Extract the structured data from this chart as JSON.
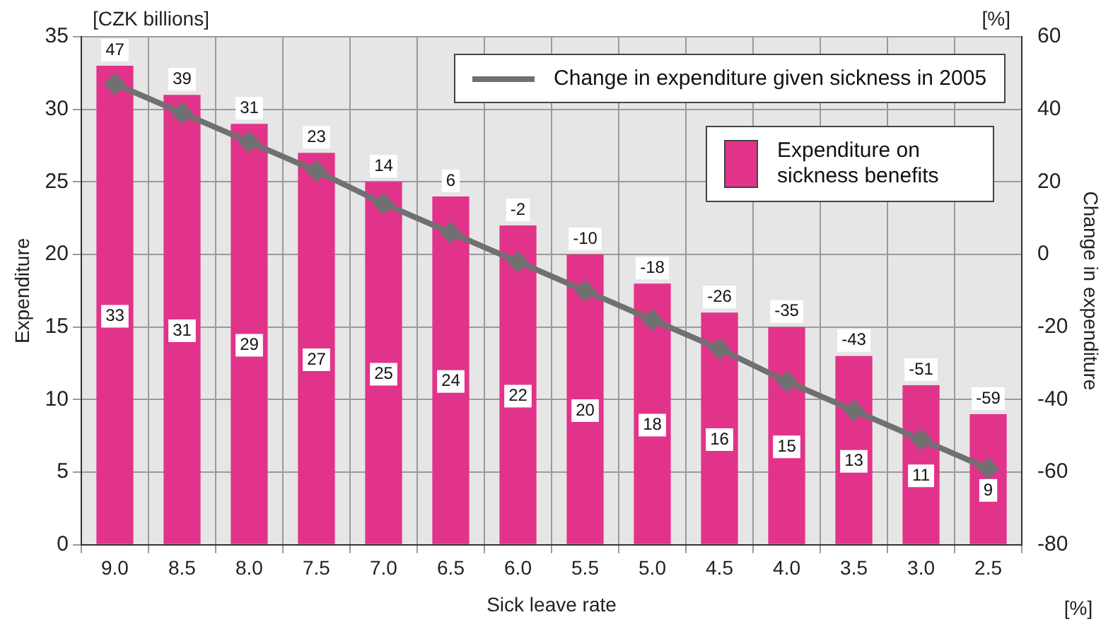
{
  "chart_data": {
    "type": "bar",
    "xlabel": "Sick leave rate",
    "ylabel": "Expenditure",
    "y2label": "Change in expenditure",
    "annotations": [
      "[CZK billions]",
      "[%]",
      "[%]"
    ],
    "categories": [
      "9.0",
      "8.5",
      "8.0",
      "7.5",
      "7.0",
      "6.5",
      "6.0",
      "5.5",
      "5.0",
      "4.5",
      "4.0",
      "3.5",
      "3.0",
      "2.5"
    ],
    "series": [
      {
        "name": "Change in expenditure given sickness in 2005",
        "type": "line",
        "axis": "y2",
        "color": "#707070",
        "marker": "diamond",
        "values": [
          47,
          39,
          31,
          23,
          14,
          6,
          -2,
          -10,
          -18,
          -26,
          -35,
          -43,
          -51,
          -59
        ]
      },
      {
        "name": "Expenditure on sickness benefits",
        "color": "#e2338a",
        "values": [
          33,
          31,
          29,
          27,
          25,
          24,
          22,
          20,
          18,
          16,
          15,
          13,
          11,
          9
        ]
      }
    ],
    "ylim": [
      0,
      35
    ],
    "yticks": [
      0,
      5,
      10,
      15,
      20,
      25,
      30,
      35
    ],
    "y2lim": [
      -80,
      60
    ],
    "y2ticks": [
      -80,
      -60,
      -40,
      -20,
      0,
      20,
      40,
      60
    ],
    "grid": true,
    "legend": "top right",
    "data_labels": true
  }
}
